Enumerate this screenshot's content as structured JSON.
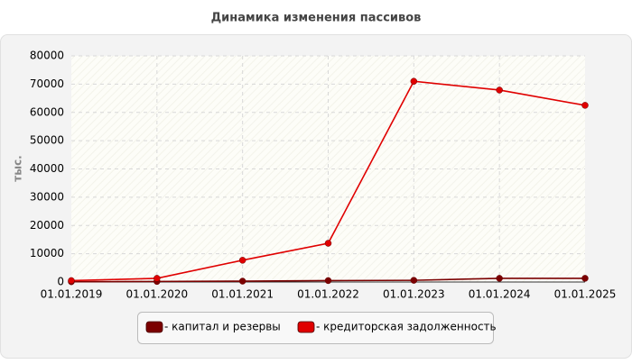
{
  "chart_data": {
    "type": "line",
    "title": "Динамика изменения пассивов",
    "y_label": "тыс.",
    "categories": [
      "01.01.2019",
      "01.01.2020",
      "01.01.2021",
      "01.01.2022",
      "01.01.2023",
      "01.01.2024",
      "01.01.2025"
    ],
    "series": [
      {
        "name": "- капитал и резервы",
        "color": "#7b0000",
        "values": [
          100,
          200,
          300,
          500,
          600,
          1300,
          1300
        ]
      },
      {
        "name": "- кредиторская задолженность",
        "color": "#e00000",
        "values": [
          500,
          1300,
          7700,
          13700,
          71000,
          67900,
          62500
        ]
      }
    ],
    "ylim": [
      0,
      80000
    ],
    "yticks": [
      0,
      10000,
      20000,
      30000,
      40000,
      50000,
      60000,
      70000,
      80000
    ],
    "grid": true
  }
}
